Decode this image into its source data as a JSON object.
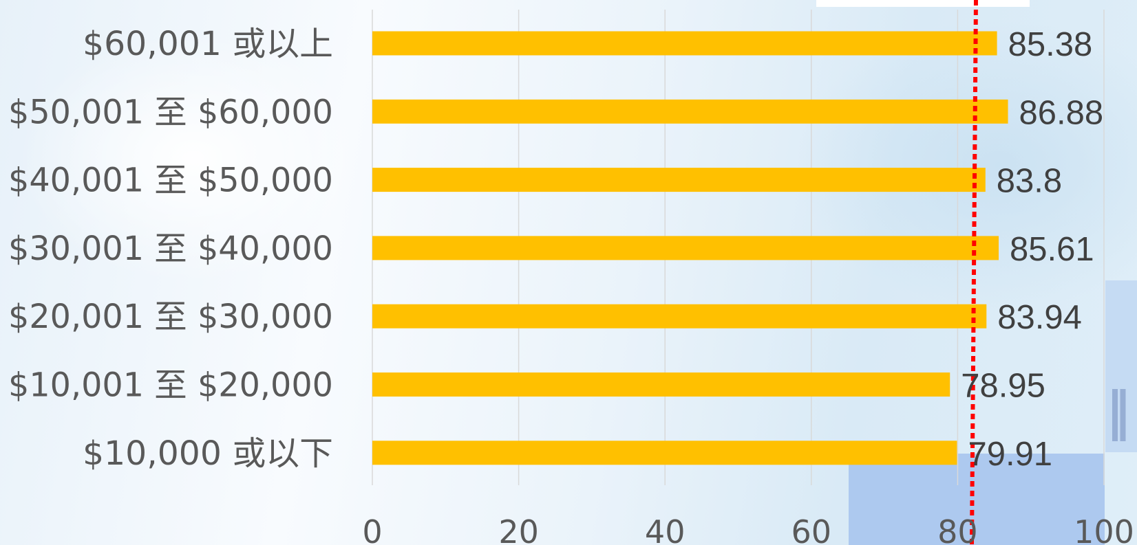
{
  "chart_data": {
    "type": "bar",
    "orientation": "horizontal",
    "categories": [
      "$60,001 或以上",
      "$50,001 至 $60,000",
      "$40,001 至 $50,000",
      "$30,001 至 $40,000",
      "$20,001 至 $30,000",
      "$10,001 至 $20,000",
      "$10,000 或以下"
    ],
    "values": [
      85.38,
      86.88,
      83.8,
      85.61,
      83.94,
      78.95,
      79.91
    ],
    "value_labels": [
      "85.38",
      "86.88",
      "83.8",
      "85.61",
      "83.94",
      "78.95",
      "79.91"
    ],
    "x_ticks": [
      0,
      20,
      40,
      60,
      80,
      100
    ],
    "x_tick_labels": [
      "0",
      "20",
      "40",
      "60",
      "80",
      "100"
    ],
    "xlim": [
      0,
      100
    ],
    "reference_line": 82.5,
    "grid": "vertical",
    "colors": {
      "bar": "#FFC000",
      "reference_line": "#FF0000",
      "grid": "#D9D9D9",
      "category_text": "#595959",
      "value_text": "#404040",
      "tick_text": "#595959"
    }
  }
}
